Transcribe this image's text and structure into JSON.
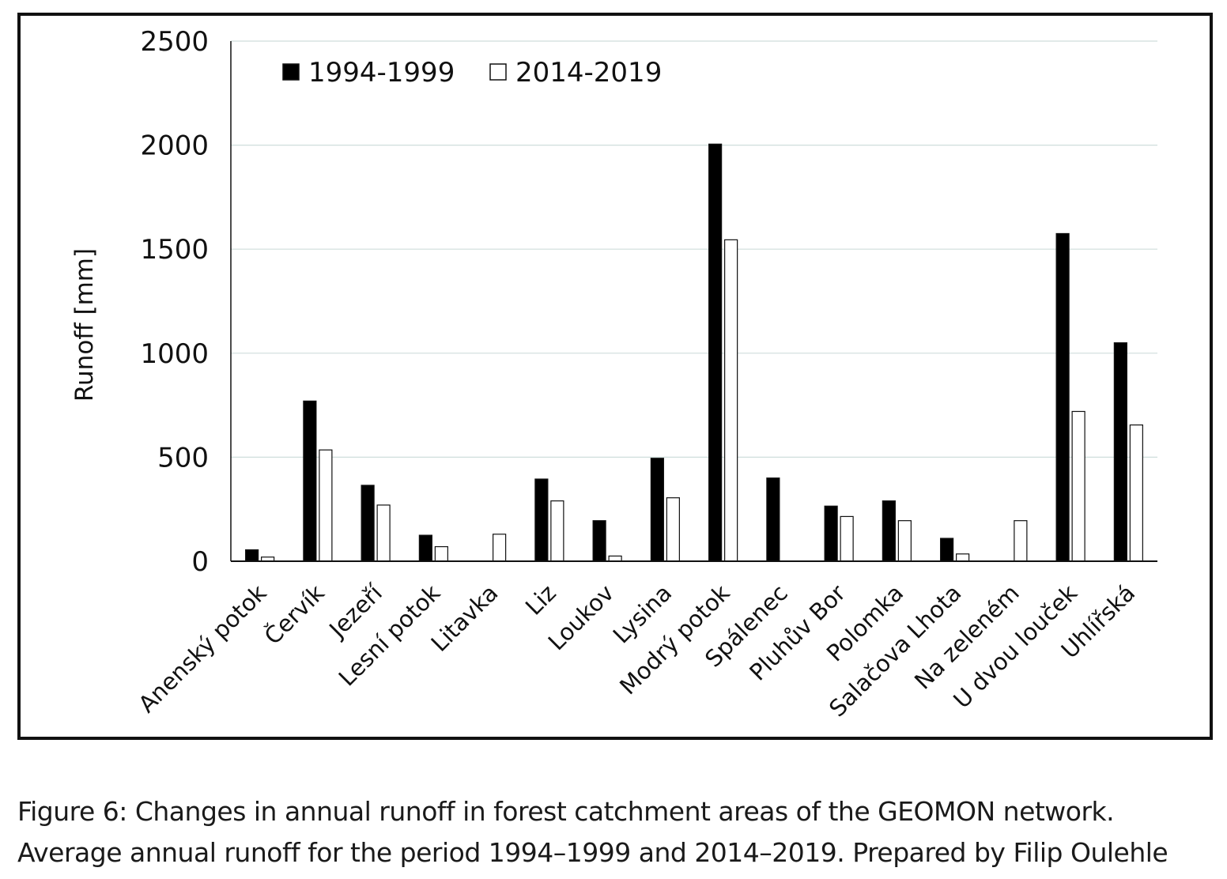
{
  "chart_data": {
    "type": "bar",
    "ylabel": "Runoff [mm]",
    "ylim": [
      0,
      2500
    ],
    "yticks": [
      0,
      500,
      1000,
      1500,
      2000,
      2500
    ],
    "grid": true,
    "legend_position": "top-left",
    "categories": [
      "Anenský potok",
      "Červík",
      "Jezeří",
      "Lesní potok",
      "Litavka",
      "Liz",
      "Loukov",
      "Lysina",
      "Modrý potok",
      "Spálenec",
      "Pluhův Bor",
      "Polomka",
      "Salačova Lhota",
      "Na zeleném",
      "U dvou louček",
      "Uhlířská"
    ],
    "series": [
      {
        "name": "1994-1999",
        "color": "#000000",
        "values": [
          55,
          770,
          365,
          125,
          null,
          395,
          195,
          495,
          2005,
          400,
          265,
          290,
          110,
          null,
          1575,
          1050
        ]
      },
      {
        "name": "2014-2019",
        "color": "#ffffff",
        "values": [
          20,
          535,
          270,
          70,
          130,
          290,
          25,
          305,
          1545,
          null,
          215,
          195,
          35,
          195,
          720,
          655
        ]
      }
    ]
  },
  "caption": {
    "line1": "Figure 6: Changes in annual runoff in forest catchment areas of the GEOMON network.",
    "line2": "Average annual runoff for the period 1994–1999 and 2014–2019. Prepared by Filip Oulehle"
  }
}
